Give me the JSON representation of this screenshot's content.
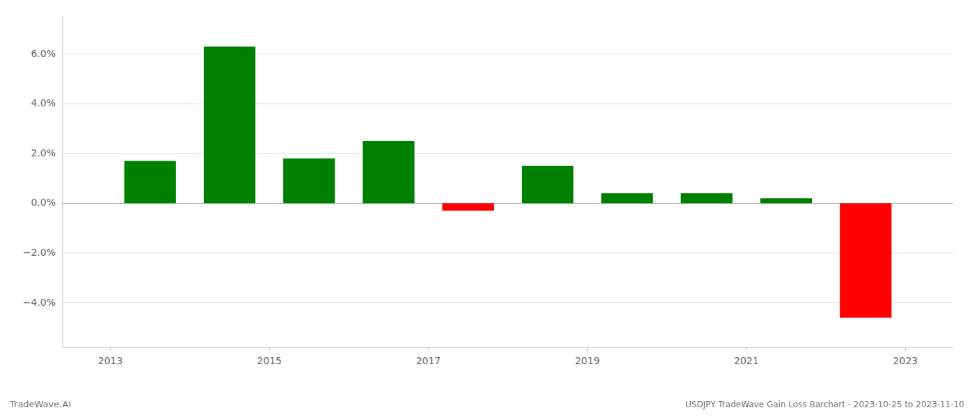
{
  "chart_data": {
    "type": "bar",
    "x": [
      2013,
      2014,
      2015,
      2016,
      2017,
      2018,
      2019,
      2020,
      2021,
      2022
    ],
    "values": [
      0.017,
      0.063,
      0.018,
      0.025,
      -0.003,
      0.015,
      0.004,
      0.004,
      0.002,
      -0.046
    ],
    "colors": [
      "#008000",
      "#008000",
      "#008000",
      "#008000",
      "#ff0000",
      "#008000",
      "#008000",
      "#008000",
      "#008000",
      "#ff0000"
    ],
    "xlim": [
      2012.4,
      2023.6
    ],
    "xticks": [
      2013,
      2015,
      2017,
      2019,
      2021,
      2023
    ],
    "ylim": [
      -0.058,
      0.075
    ],
    "yticks": [
      {
        "value": -0.04,
        "label": "−4.0%"
      },
      {
        "value": -0.02,
        "label": "−2.0%"
      },
      {
        "value": 0.0,
        "label": "0.0%"
      },
      {
        "value": 0.02,
        "label": "2.0%"
      },
      {
        "value": 0.04,
        "label": "4.0%"
      },
      {
        "value": 0.06,
        "label": "6.0%"
      }
    ],
    "grid": true,
    "annotations": [
      "TradeWave.AI",
      "USDJPY TradeWave Gain Loss Barchart - 2023-10-25 to 2023-11-10"
    ]
  }
}
